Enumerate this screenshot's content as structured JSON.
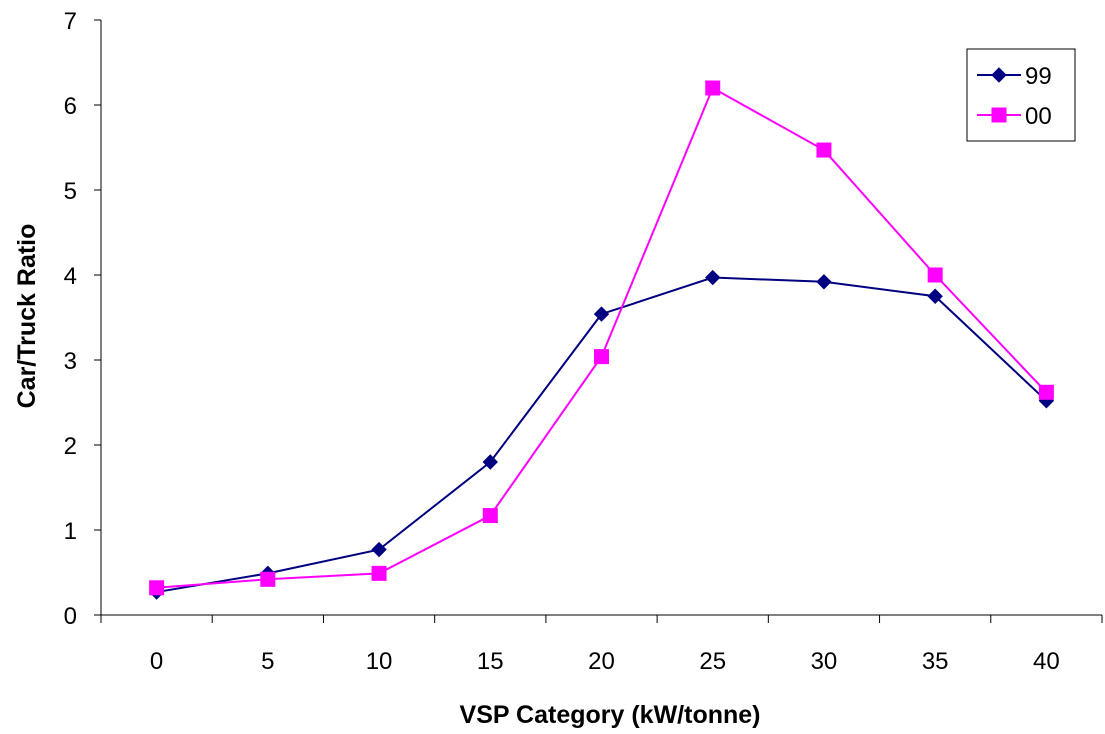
{
  "chart_data": {
    "type": "line",
    "title": "",
    "xlabel": "VSP Category (kW/tonne)",
    "ylabel": "Car/Truck Ratio",
    "x": [
      0,
      5,
      10,
      15,
      20,
      25,
      30,
      35,
      40
    ],
    "categories": [
      "0",
      "5",
      "10",
      "15",
      "20",
      "25",
      "30",
      "35",
      "40"
    ],
    "yticks": [
      "0",
      "1",
      "2",
      "3",
      "4",
      "5",
      "6",
      "7"
    ],
    "ylim": [
      0,
      7
    ],
    "grid": false,
    "legend_position": "top-right",
    "series": [
      {
        "name": "99",
        "color": "#000080",
        "marker": "diamond",
        "values": [
          0.27,
          0.49,
          0.77,
          1.8,
          3.54,
          3.97,
          3.92,
          3.75,
          2.52
        ]
      },
      {
        "name": "00",
        "color": "#FF00FF",
        "marker": "square",
        "values": [
          0.32,
          0.42,
          0.49,
          1.17,
          3.04,
          6.2,
          5.47,
          4.0,
          2.62
        ]
      }
    ]
  }
}
